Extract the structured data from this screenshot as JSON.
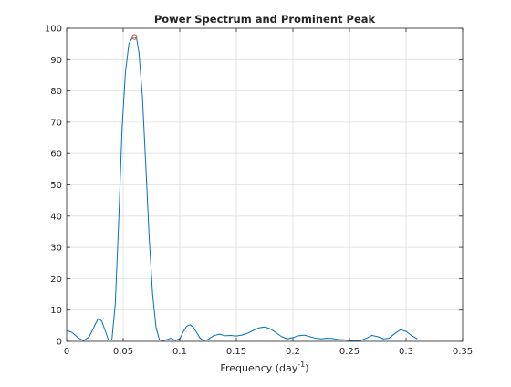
{
  "chart_data": {
    "type": "line",
    "title": "Power Spectrum and Prominent Peak",
    "xlabel": "Frequency (day",
    "xlabel_superscript": "-1",
    "xlabel_suffix": ")",
    "ylabel": "",
    "xlim": [
      0,
      0.35
    ],
    "ylim": [
      0,
      100
    ],
    "xticks": [
      0,
      0.05,
      0.1,
      0.15,
      0.2,
      0.25,
      0.3,
      0.35
    ],
    "xtick_labels": [
      "0",
      "0.05",
      "0.1",
      "0.15",
      "0.2",
      "0.25",
      "0.3",
      "0.35"
    ],
    "yticks": [
      0,
      10,
      20,
      30,
      40,
      50,
      60,
      70,
      80,
      90,
      100
    ],
    "ytick_labels": [
      "0",
      "10",
      "20",
      "30",
      "40",
      "50",
      "60",
      "70",
      "80",
      "90",
      "100"
    ],
    "grid": true,
    "series": [
      {
        "color": "#0072BD",
        "x": [
          0.0,
          0.005,
          0.01,
          0.015,
          0.02,
          0.025,
          0.028,
          0.031,
          0.034,
          0.037,
          0.04,
          0.043,
          0.046,
          0.049,
          0.052,
          0.055,
          0.058,
          0.06,
          0.062,
          0.064,
          0.067,
          0.07,
          0.073,
          0.076,
          0.079,
          0.082,
          0.085,
          0.088,
          0.092,
          0.096,
          0.1,
          0.103,
          0.106,
          0.109,
          0.112,
          0.115,
          0.118,
          0.121,
          0.125,
          0.13,
          0.135,
          0.14,
          0.145,
          0.15,
          0.155,
          0.16,
          0.165,
          0.17,
          0.175,
          0.18,
          0.185,
          0.19,
          0.195,
          0.2,
          0.205,
          0.21,
          0.215,
          0.22,
          0.225,
          0.23,
          0.235,
          0.24,
          0.245,
          0.25,
          0.255,
          0.26,
          0.265,
          0.27,
          0.275,
          0.28,
          0.285,
          0.29,
          0.295,
          0.3,
          0.305,
          0.31
        ],
        "y": [
          3.5,
          2.8,
          1.2,
          0.2,
          1.5,
          5.2,
          7.3,
          6.5,
          3.5,
          0.4,
          0.5,
          12,
          38,
          68,
          86,
          95,
          97,
          97.2,
          96.5,
          92,
          78,
          56,
          33,
          15,
          4.5,
          0.5,
          0.2,
          0.5,
          1.0,
          0.3,
          0.8,
          3.0,
          4.8,
          5.3,
          4.5,
          2.8,
          1.0,
          0.2,
          0.6,
          1.8,
          2.3,
          1.8,
          1.9,
          1.7,
          2.0,
          2.6,
          3.5,
          4.3,
          4.6,
          4.0,
          2.8,
          1.5,
          0.8,
          1.2,
          1.8,
          2.0,
          1.5,
          1.0,
          0.8,
          1.0,
          0.9,
          0.6,
          0.5,
          0.2,
          0.1,
          0.3,
          1.0,
          1.9,
          1.5,
          0.8,
          1.0,
          2.5,
          3.7,
          3.2,
          1.8,
          0.8
        ]
      }
    ],
    "peak_marker": {
      "x": 0.06,
      "y": 97.2,
      "color": "#D95319",
      "shape": "circle"
    }
  }
}
